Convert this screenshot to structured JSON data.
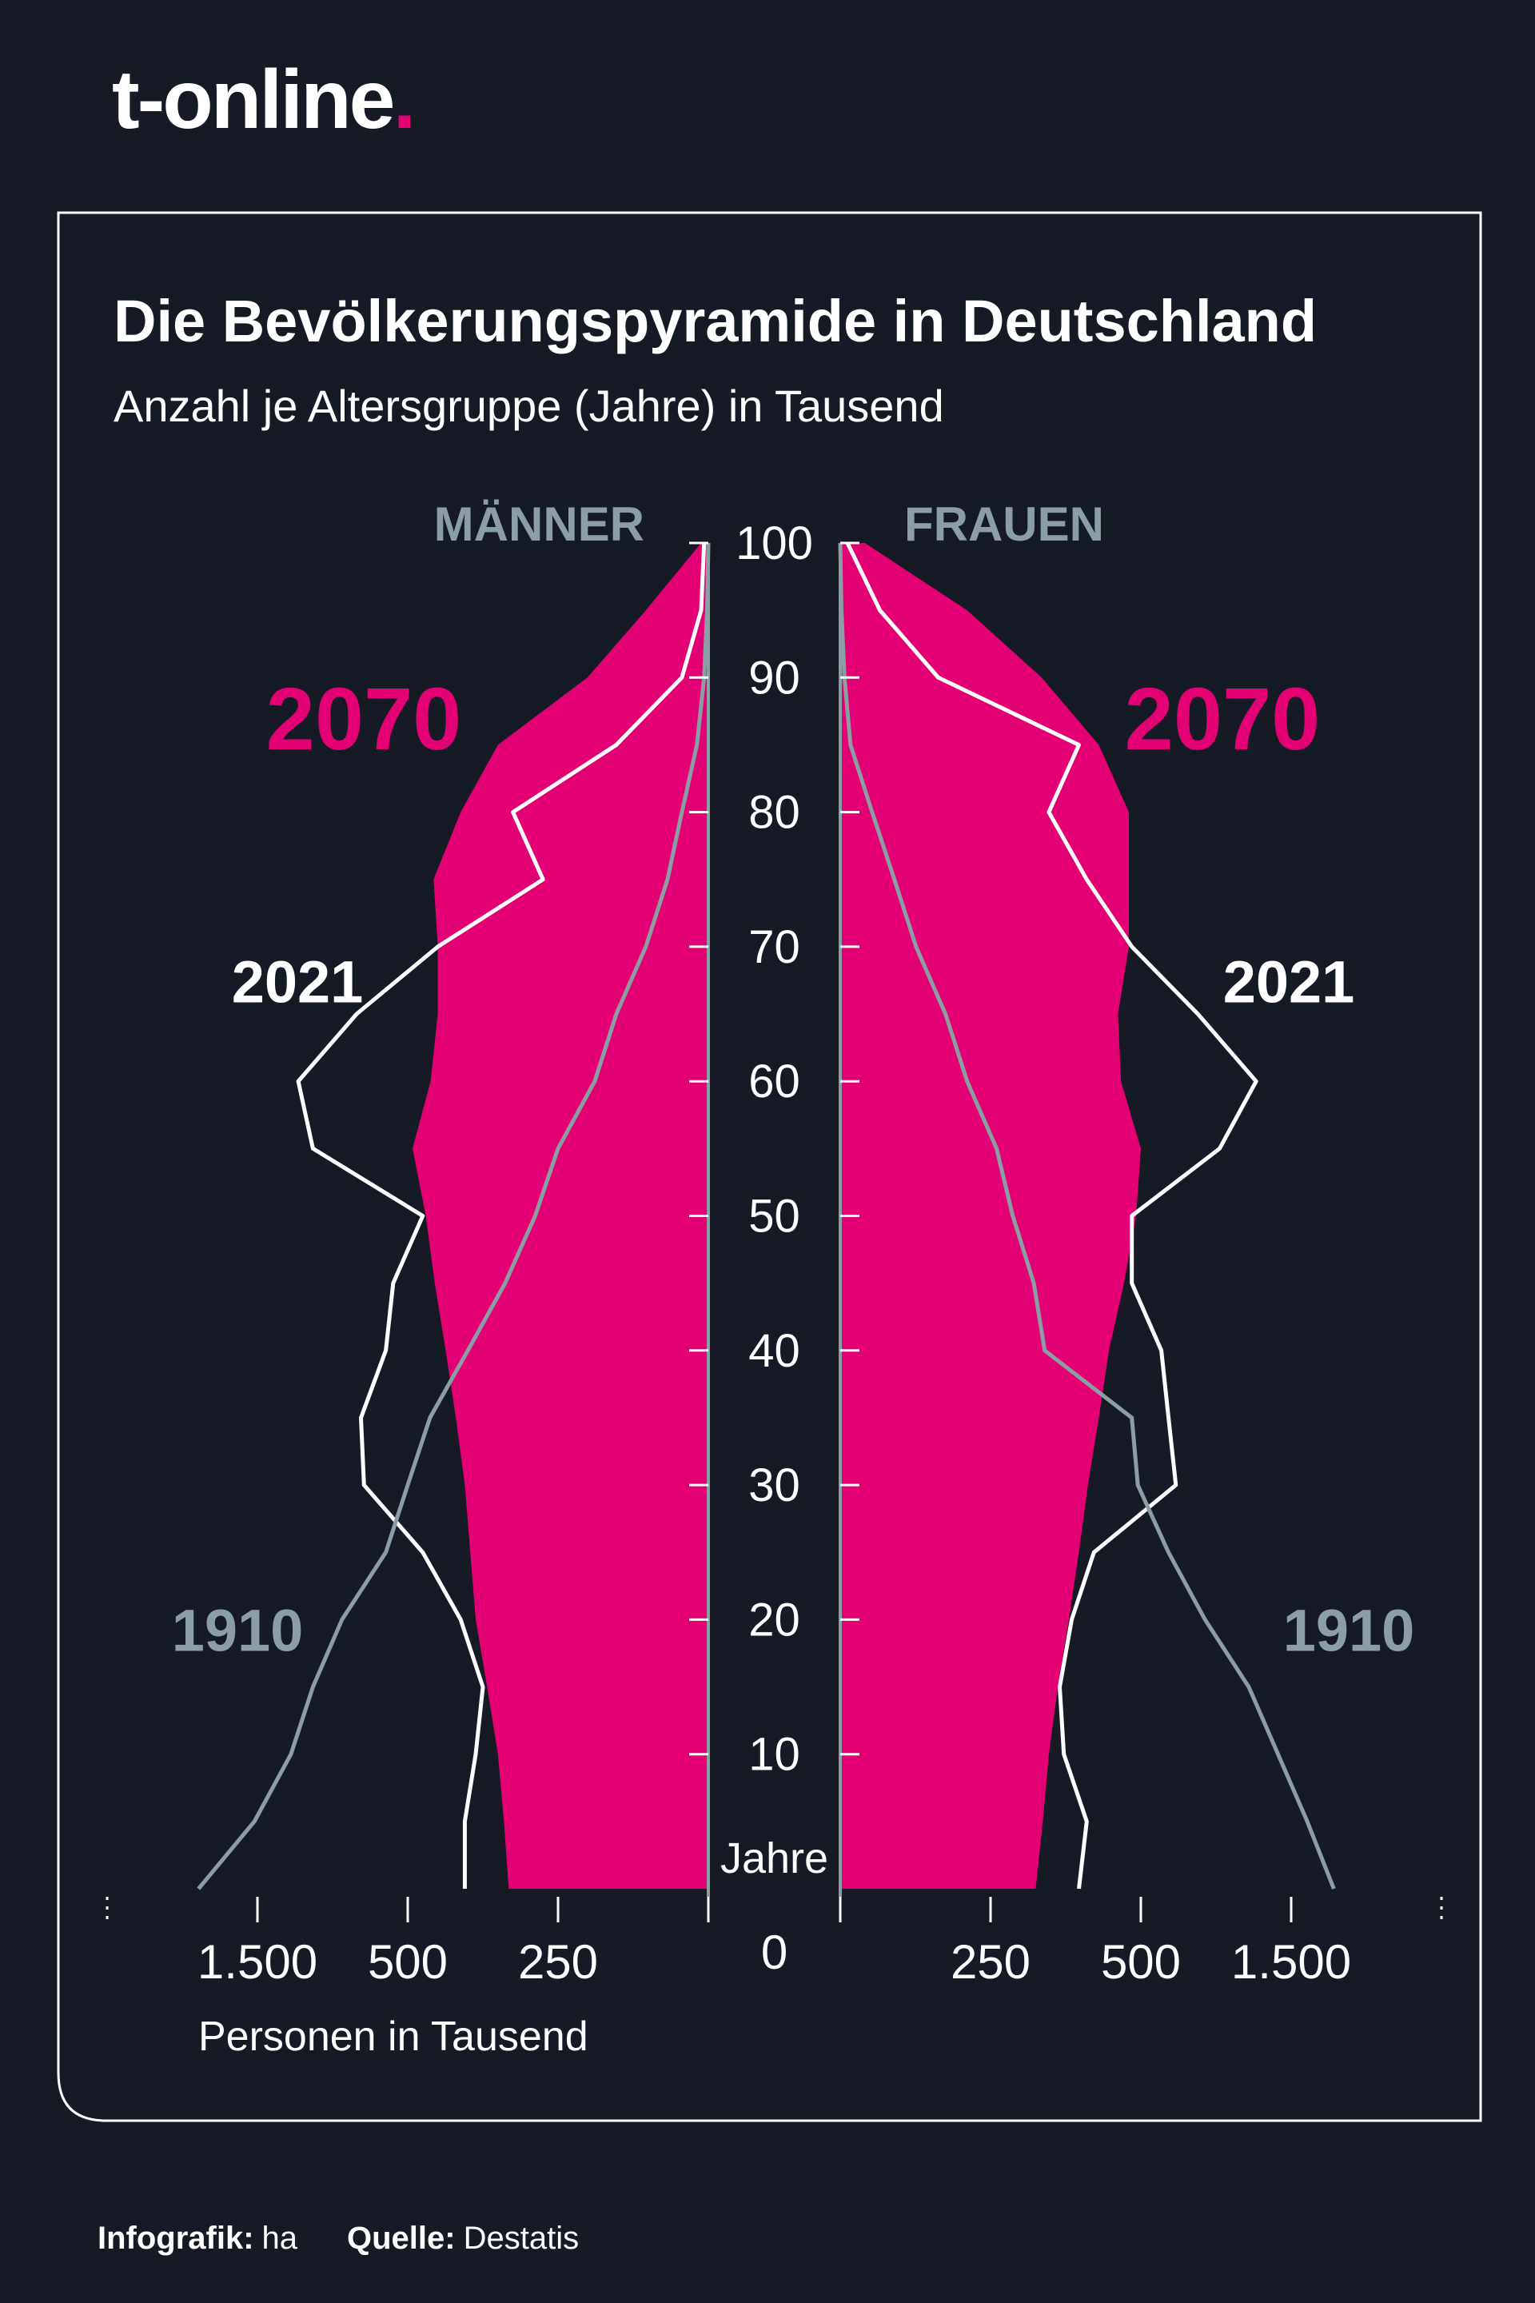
{
  "logo": {
    "text": "t-online",
    "dot": "."
  },
  "chart_data": {
    "type": "pyramid",
    "title": "Die Bevölkerungspyramide in Deutschland",
    "subtitle": "Anzahl je Altersgruppe (Jahre) in Tausend",
    "y_label": "Jahre",
    "x_label": "Personen in Tausend",
    "ages": [
      0,
      5,
      10,
      15,
      20,
      25,
      30,
      35,
      40,
      45,
      50,
      55,
      60,
      65,
      70,
      75,
      80,
      85,
      90,
      95,
      100
    ],
    "ylim": [
      0,
      100
    ],
    "yticks": [
      10,
      20,
      30,
      40,
      50,
      60,
      70,
      80,
      90,
      100
    ],
    "xlim": [
      0,
      2500
    ],
    "xticks": [
      0,
      250,
      500,
      {
        "value": 1500,
        "label": "1.500"
      }
    ],
    "x_scale": "piecewise",
    "left": {
      "label": "MÄNNER",
      "series": [
        {
          "name": "2070",
          "color": "#e20074",
          "fill": true,
          "values": [
            332,
            340,
            350,
            368,
            387,
            396,
            405,
            420,
            437,
            455,
            470,
            492,
            462,
            450,
            450,
            457,
            412,
            350,
            201,
            104,
            12
          ]
        },
        {
          "name": "2021",
          "color": "#ffffff",
          "fill": false,
          "values": [
            405,
            405,
            387,
            375,
            412,
            475,
            791,
            811,
            646,
            597,
            475,
            1131,
            1228,
            840,
            450,
            275,
            325,
            153,
            44,
            12,
            7
          ]
        },
        {
          "name": "1910",
          "color": "#8a9ea3",
          "fill": false,
          "values": [
            1892,
            1520,
            1277,
            1131,
            937,
            646,
            500,
            463,
            400,
            338,
            288,
            250,
            189,
            153,
            104,
            68,
            44,
            19,
            7,
            2,
            0
          ]
        }
      ]
    },
    "right": {
      "label": "FRAUEN",
      "series": [
        {
          "name": "2070",
          "color": "#e20074",
          "fill": true,
          "values": [
            325,
            337,
            347,
            362,
            380,
            397,
            412,
            430,
            447,
            472,
            492,
            500,
            467,
            462,
            480,
            480,
            480,
            430,
            335,
            211,
            41
          ]
        },
        {
          "name": "2021",
          "color": "#ffffff",
          "fill": false,
          "values": [
            397,
            410,
            372,
            365,
            385,
            422,
            733,
            684,
            636,
            485,
            485,
            1024,
            1267,
            879,
            485,
            410,
            347,
            397,
            163,
            66,
            12
          ]
        },
        {
          "name": "1910",
          "color": "#8a9ea3",
          "fill": false,
          "values": [
            1784,
            1607,
            1413,
            1218,
            927,
            684,
            495,
            485,
            340,
            322,
            287,
            260,
            211,
            175,
            126,
            90,
            53,
            17,
            7,
            2,
            0
          ]
        }
      ]
    }
  },
  "footer": {
    "credit_label": "Infografik:",
    "credit": "ha",
    "source_label": "Quelle:",
    "source": "Destatis"
  }
}
